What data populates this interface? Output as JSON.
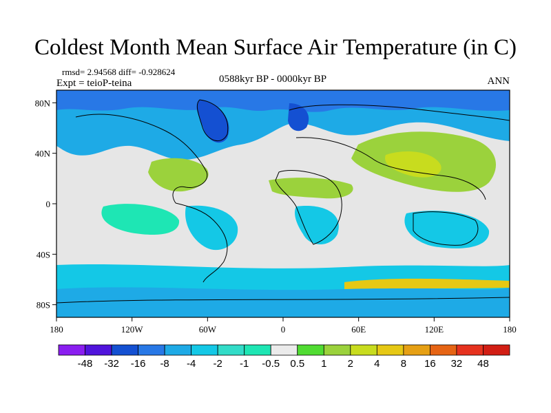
{
  "title": "Coldest Month Mean Surface Air Temperature (in C)",
  "stats": "rmsd= 2.94568 diff= -0.928624",
  "experiment": "Expt = teioP-teina",
  "period": "0588kyr BP - 0000kyr BP",
  "season": "ANN",
  "colors": {
    "neutral": "#e6e6e6",
    "ocean_pos": "#9bd23c",
    "map_frame": "#000000"
  },
  "chart_data": {
    "type": "heatmap",
    "projection": "cylindrical-equidistant",
    "lon_range": [
      -180,
      180
    ],
    "lat_range": [
      -90,
      90
    ],
    "x_ticks": [
      "180",
      "120W",
      "60W",
      "0",
      "60E",
      "120E",
      "180"
    ],
    "y_ticks": [
      "80N",
      "40N",
      "0",
      "40S",
      "80S"
    ],
    "colorbar": {
      "labels": [
        "-48",
        "-32",
        "-16",
        "-8",
        "-4",
        "-2",
        "-1",
        "-0.5",
        "0.5",
        "1",
        "2",
        "4",
        "8",
        "16",
        "32",
        "48"
      ],
      "colors": [
        "#8a1ef0",
        "#5014dc",
        "#1450d2",
        "#2878e6",
        "#1eaae6",
        "#14c8e6",
        "#32dcc8",
        "#1ee6b4",
        "#ebebeb",
        "#50dc32",
        "#9bd23c",
        "#c8dc1e",
        "#e6c814",
        "#e6a014",
        "#e66414",
        "#e6321e",
        "#d21e14"
      ]
    }
  }
}
